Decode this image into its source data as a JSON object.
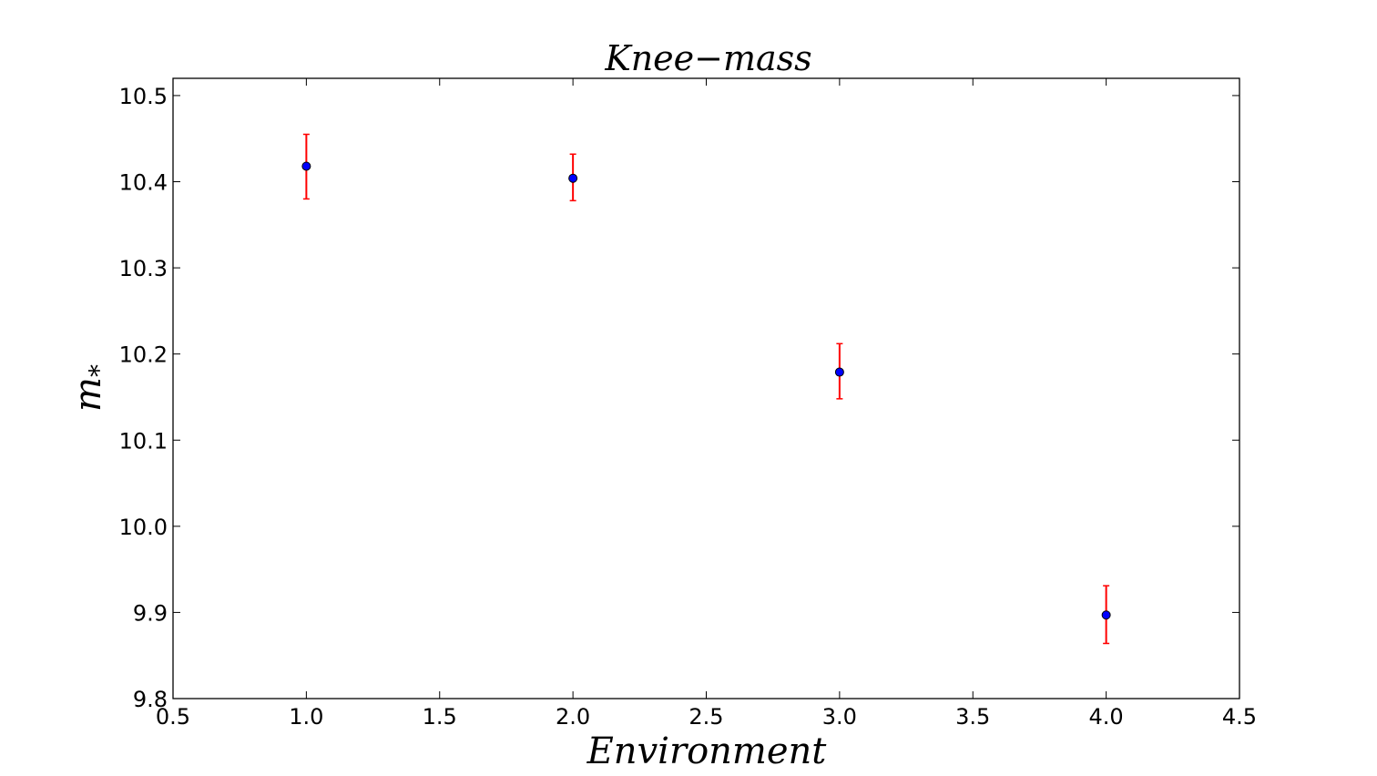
{
  "chart_data": {
    "type": "scatter",
    "title": "Knee−mass",
    "xlabel": "Environment",
    "ylabel": "m",
    "ylabel_subscript": "*",
    "xlim": [
      0.5,
      4.5
    ],
    "ylim": [
      9.8,
      10.52
    ],
    "xticks": [
      "0.5",
      "1.0",
      "1.5",
      "2.0",
      "2.5",
      "3.0",
      "3.5",
      "4.0",
      "4.5"
    ],
    "yticks": [
      "9.8",
      "9.9",
      "10.0",
      "10.1",
      "10.2",
      "10.3",
      "10.4",
      "10.5"
    ],
    "grid": false,
    "series": [
      {
        "x": [
          1.0,
          2.0,
          3.0,
          4.0
        ],
        "y": [
          10.418,
          10.404,
          10.179,
          9.897
        ],
        "yerr_low": [
          10.38,
          10.378,
          10.148,
          9.864
        ],
        "yerr_high": [
          10.455,
          10.432,
          10.212,
          9.931
        ],
        "marker_color": "#0000ff",
        "errorbar_color": "#ff0000"
      }
    ]
  }
}
